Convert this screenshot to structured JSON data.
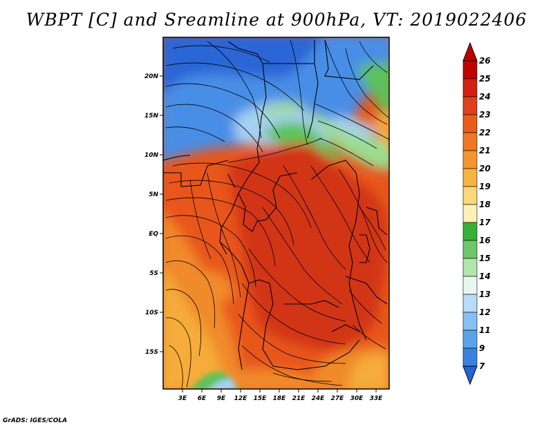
{
  "title": "WBPT [C] and Sreamline at 900hPa, VT: 2019022406",
  "credit": "GrADS: IGES/COLA",
  "map": {
    "lat_labels": [
      "20N",
      "15N",
      "10N",
      "5N",
      "EQ",
      "5S",
      "10S",
      "15S"
    ],
    "lon_labels": [
      "3E",
      "6E",
      "9E",
      "12E",
      "15E",
      "18E",
      "21E",
      "24E",
      "27E",
      "30E",
      "33E"
    ],
    "palette": {
      "blue_dark": "#2a66d6",
      "blue_mid": "#4a8ee6",
      "blue_light": "#a6d0f4",
      "green_light": "#9cdc8e",
      "green": "#5cc25a",
      "red_dark": "#d23412",
      "orange_red": "#e8561c",
      "orange": "#f08a2a",
      "yellow_orange": "#f5ac3a"
    }
  },
  "colorbar": {
    "labels": [
      "26",
      "25",
      "24",
      "23",
      "22",
      "21",
      "20",
      "19",
      "18",
      "17",
      "16",
      "15",
      "14",
      "13",
      "12",
      "11",
      "9",
      "7"
    ],
    "colors": [
      "#c00000",
      "#d42010",
      "#e0401a",
      "#e85c1c",
      "#f07822",
      "#f4962c",
      "#f8b440",
      "#fcd878",
      "#fcf0b4",
      "#38b038",
      "#6cc868",
      "#b0e6a8",
      "#e6f8ee",
      "#b6dcf8",
      "#86c0f2",
      "#5aa2ea",
      "#3a82e0",
      "#2464d4"
    ]
  }
}
